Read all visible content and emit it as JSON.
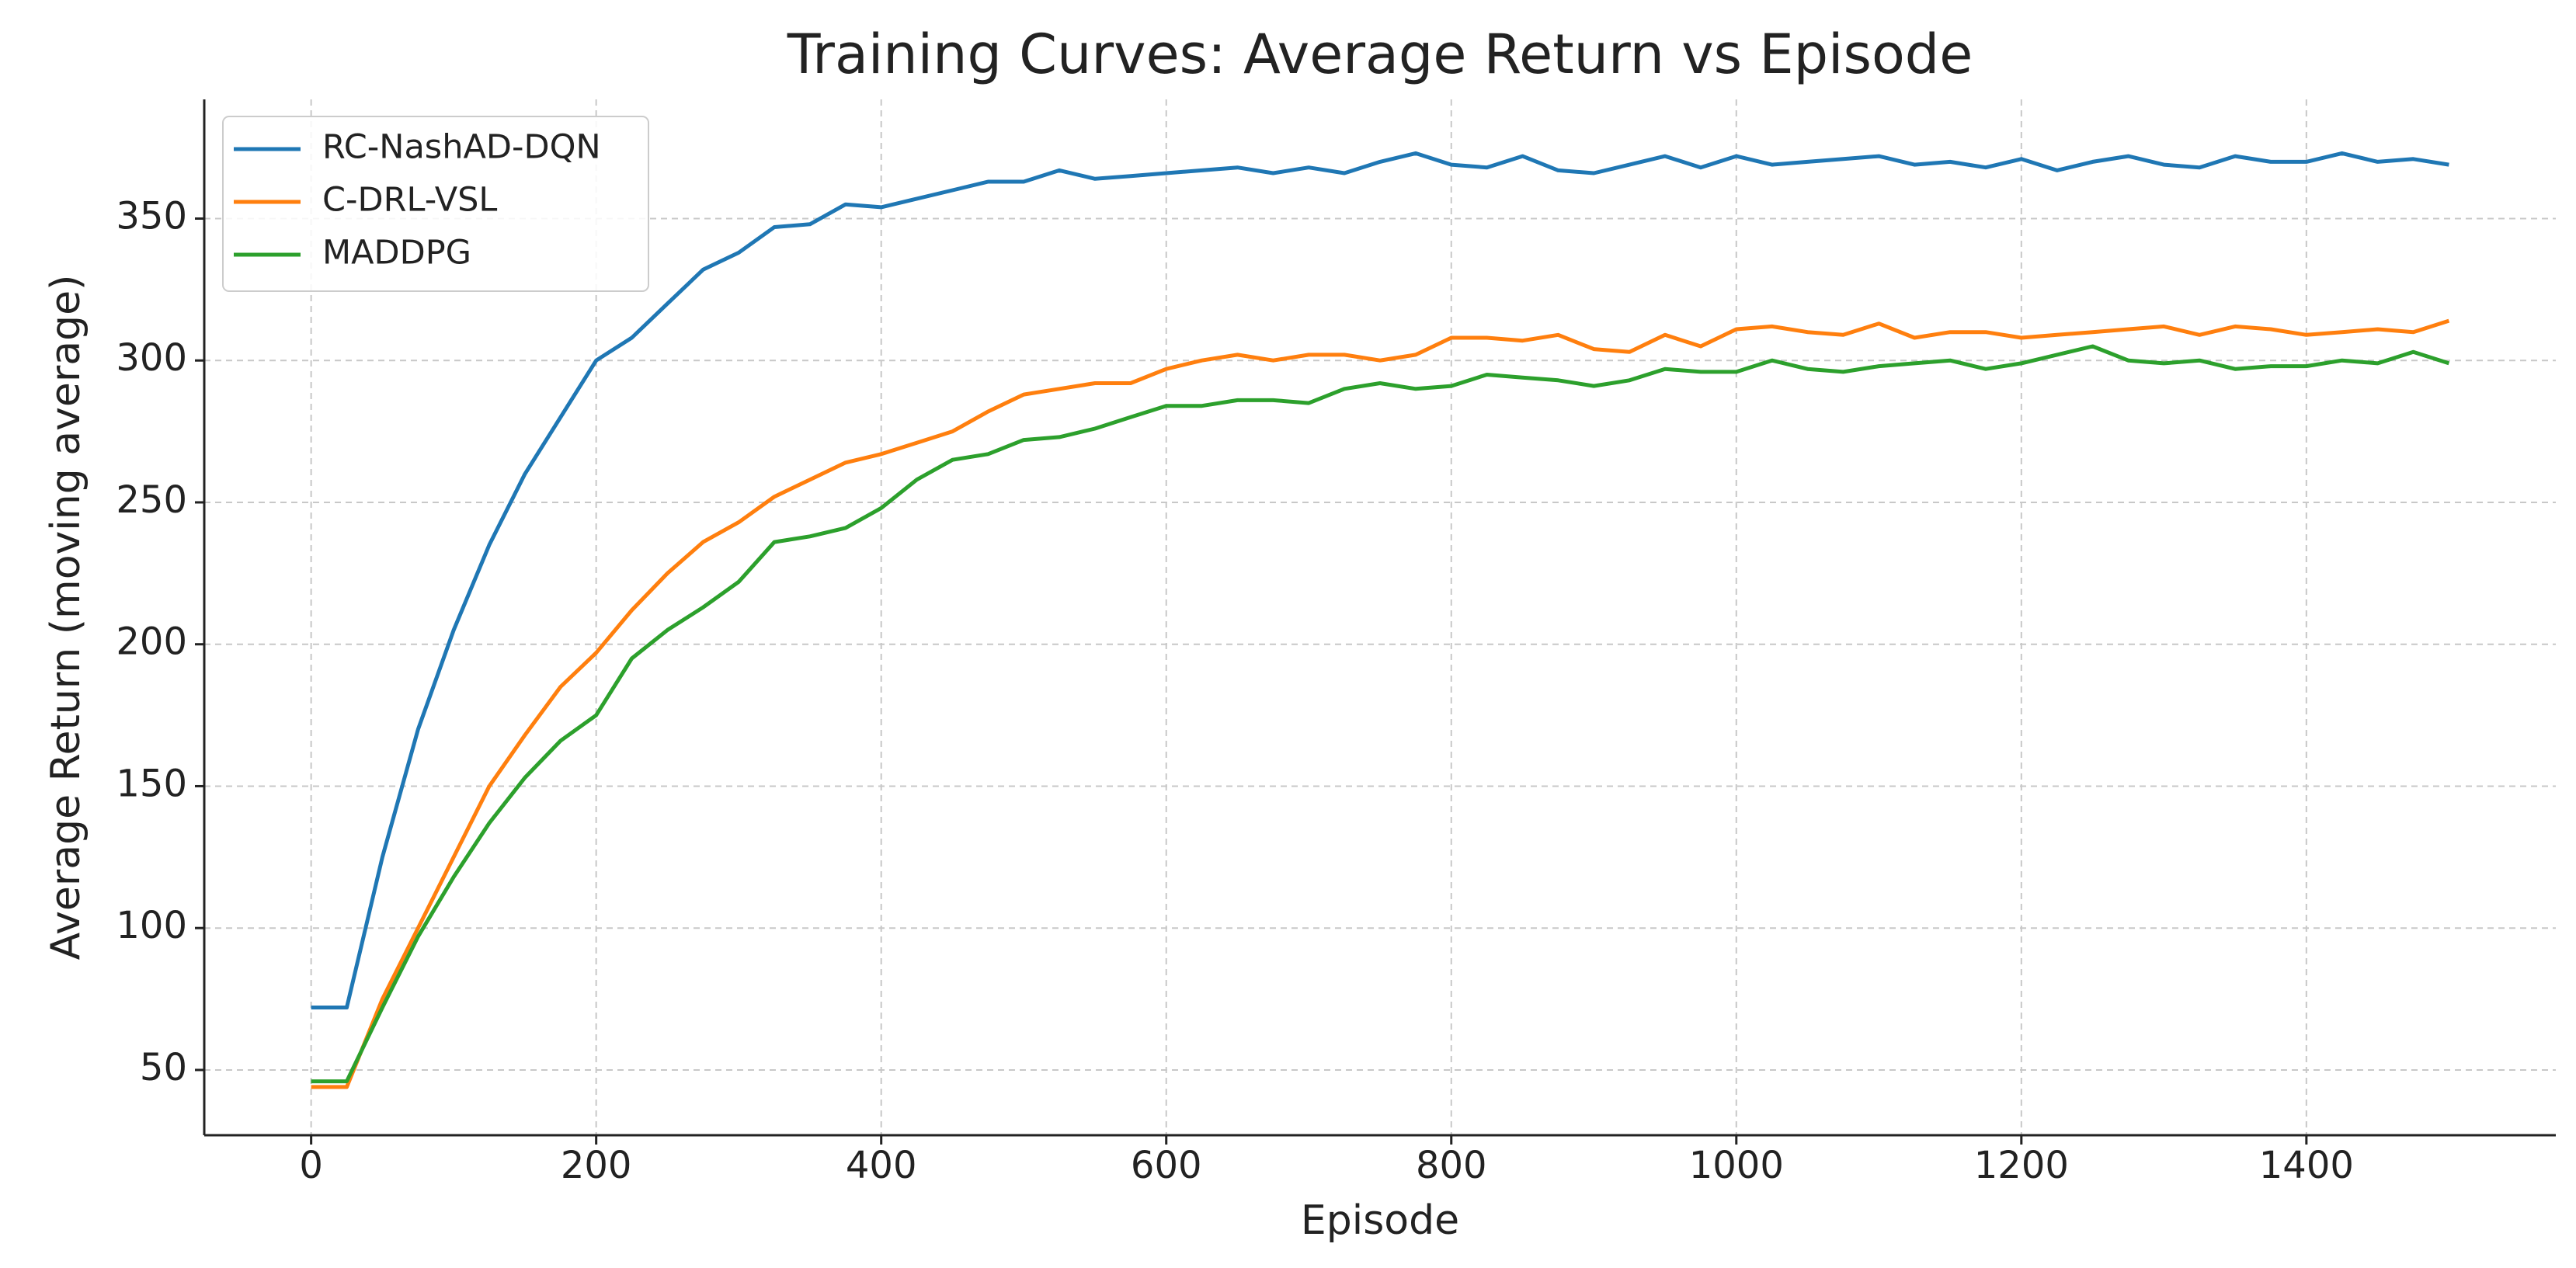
{
  "chart_data": {
    "type": "line",
    "title": "Training Curves: Average Return vs Episode",
    "xlabel": "Episode",
    "ylabel": "Average Return (moving average)",
    "x": [
      0,
      25,
      50,
      75,
      100,
      125,
      150,
      175,
      200,
      225,
      250,
      275,
      300,
      325,
      350,
      375,
      400,
      425,
      450,
      475,
      500,
      525,
      550,
      575,
      600,
      625,
      650,
      675,
      700,
      725,
      750,
      775,
      800,
      825,
      850,
      875,
      900,
      925,
      950,
      975,
      1000,
      1025,
      1050,
      1075,
      1100,
      1125,
      1150,
      1175,
      1200,
      1225,
      1250,
      1275,
      1300,
      1325,
      1350,
      1375,
      1400,
      1425,
      1450,
      1475,
      1500
    ],
    "series": [
      {
        "name": "RC-NashAD-DQN",
        "color": "#1f77b4",
        "values": [
          72,
          72,
          125,
          170,
          205,
          235,
          260,
          280,
          300,
          308,
          320,
          332,
          338,
          347,
          348,
          355,
          354,
          357,
          360,
          363,
          363,
          367,
          364,
          365,
          366,
          367,
          368,
          366,
          368,
          366,
          370,
          373,
          369,
          368,
          372,
          367,
          366,
          369,
          372,
          368,
          372,
          369,
          370,
          371,
          372,
          369,
          370,
          368,
          371,
          367,
          370,
          372,
          369,
          368,
          372,
          370,
          370,
          373,
          370,
          371,
          369
        ]
      },
      {
        "name": "C-DRL-VSL",
        "color": "#ff7f0e",
        "values": [
          44,
          44,
          75,
          100,
          125,
          150,
          168,
          185,
          197,
          212,
          225,
          236,
          243,
          252,
          258,
          264,
          267,
          271,
          275,
          282,
          288,
          290,
          292,
          292,
          297,
          300,
          302,
          300,
          302,
          302,
          300,
          302,
          308,
          308,
          307,
          309,
          304,
          303,
          309,
          305,
          311,
          312,
          310,
          309,
          313,
          308,
          310,
          310,
          308,
          309,
          310,
          311,
          312,
          309,
          312,
          311,
          309,
          310,
          311,
          310,
          314
        ]
      },
      {
        "name": "MADDPG",
        "color": "#2ca02c",
        "values": [
          46,
          46,
          72,
          97,
          118,
          137,
          153,
          166,
          175,
          195,
          205,
          213,
          222,
          236,
          238,
          241,
          248,
          258,
          265,
          267,
          272,
          273,
          276,
          280,
          284,
          284,
          286,
          286,
          285,
          290,
          292,
          290,
          291,
          295,
          294,
          293,
          291,
          293,
          297,
          296,
          296,
          300,
          297,
          296,
          298,
          299,
          300,
          297,
          299,
          302,
          305,
          300,
          299,
          300,
          297,
          298,
          298,
          300,
          299,
          303,
          299
        ]
      }
    ],
    "xlim": [
      -75,
      1575
    ],
    "ylim": [
      27,
      392
    ],
    "xticks": [
      0,
      200,
      400,
      600,
      800,
      1000,
      1200,
      1400
    ],
    "yticks": [
      50,
      100,
      150,
      200,
      250,
      300,
      350
    ],
    "grid": true,
    "legend": "upper left"
  }
}
